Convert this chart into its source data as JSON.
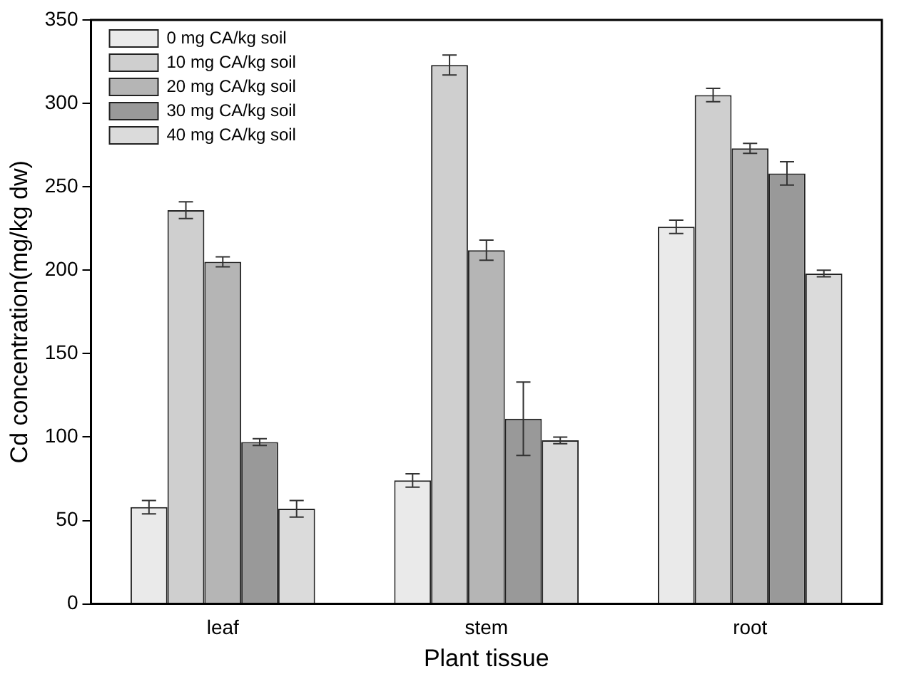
{
  "chart_data": {
    "type": "bar",
    "xlabel": "Plant tissue",
    "ylabel": "Cd concentration(mg/kg dw)",
    "categories": [
      "leaf",
      "stem",
      "root"
    ],
    "series": [
      {
        "name": "0 mg CA/kg soil",
        "color": "#eaeaea",
        "values": [
          58,
          74,
          226
        ],
        "errors": [
          4,
          4,
          4
        ]
      },
      {
        "name": "10 mg CA/kg soil",
        "color": "#cfcfcf",
        "values": [
          236,
          323,
          305
        ],
        "errors": [
          5,
          6,
          4
        ]
      },
      {
        "name": "20 mg CA/kg soil",
        "color": "#b5b5b5",
        "values": [
          205,
          212,
          273
        ],
        "errors": [
          3,
          6,
          3
        ]
      },
      {
        "name": "30 mg CA/kg soil",
        "color": "#999999",
        "values": [
          97,
          111,
          258
        ],
        "errors": [
          2,
          22,
          7
        ]
      },
      {
        "name": "40 mg CA/kg soil",
        "color": "#dbdbdb",
        "values": [
          57,
          98,
          198
        ],
        "errors": [
          5,
          2,
          2
        ]
      }
    ],
    "ylim": [
      0,
      350
    ],
    "yticks": [
      0,
      50,
      100,
      150,
      200,
      250,
      300,
      350
    ],
    "grid": false,
    "legend": "top left"
  }
}
